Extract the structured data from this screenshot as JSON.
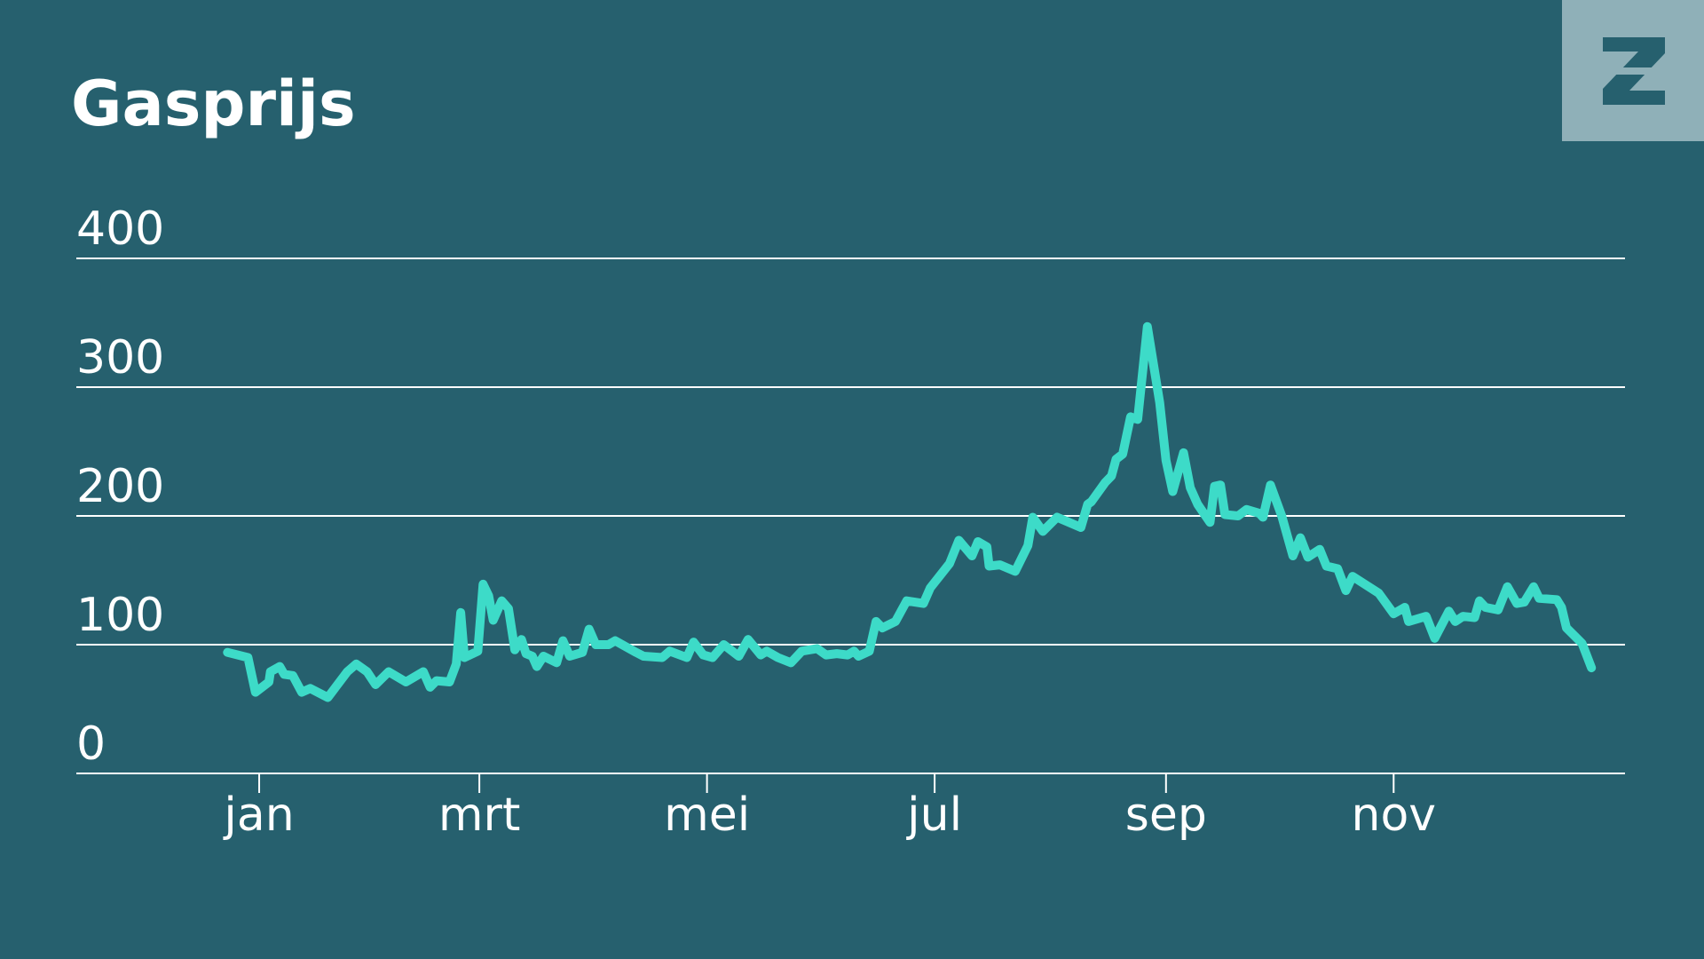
{
  "chart_data": {
    "type": "line",
    "title": "Gasprijs",
    "x": [
      -8.5,
      -3,
      -1,
      2.6,
      3,
      5.5,
      6.7,
      9,
      11.4,
      13.7,
      18.4,
      23.6,
      26,
      28.9,
      31.2,
      34.7,
      39.3,
      44,
      45.8,
      47.5,
      51,
      52.8,
      54,
      55,
      58.6,
      60,
      61.5,
      62.7,
      65,
      66.8,
      68.5,
      70.3,
      71.5,
      73.2,
      74.4,
      76.2,
      79.7,
      81.4,
      83.2,
      86.6,
      88.4,
      90.2,
      93.6,
      95.4,
      101,
      103,
      108,
      110,
      114.6,
      116.4,
      119,
      121.5,
      124.5,
      128.5,
      131,
      134.4,
      136,
      139,
      142.5,
      145.4,
      149.5,
      151.9,
      154.8,
      157.7,
      159.4,
      160.6,
      163.5,
      165.3,
      167,
      170.5,
      173.5,
      178,
      179.8,
      185,
      187.5,
      191,
      192.6,
      195,
      195.6,
      198.5,
      202.6,
      206,
      207.3,
      210,
      213.8,
      220.2,
      222,
      223,
      226.7,
      228.4,
      229.6,
      231.4,
      233.5,
      235.4,
      238,
      241.3,
      243,
      244.8,
      247.7,
      249.5,
      251.5,
      254.8,
      256,
      257.6,
      258.8,
      262.3,
      264.6,
      268,
      269,
      271,
      274,
      277,
      279,
      281,
      284.2,
      286,
      289,
      291.2,
      293,
      300,
      304,
      307,
      308,
      312.7,
      315,
      318.8,
      320.5,
      322.6,
      325.7,
      327,
      328.6,
      332,
      334.5,
      337,
      339,
      341.5,
      343,
      347.7,
      349,
      350.3,
      354.5,
      357
    ],
    "series": [
      {
        "name": "Gasprijs",
        "color": "#3ddbc8",
        "values": [
          94,
          90,
          63,
          71,
          79,
          83,
          77,
          76,
          63,
          66,
          59,
          79,
          85,
          79,
          69,
          79,
          71,
          79,
          67,
          72,
          71,
          85,
          125,
          90,
          95,
          147,
          138,
          119,
          134,
          128,
          96,
          104,
          93,
          91,
          83,
          91,
          86,
          103,
          91,
          94,
          112,
          100,
          100,
          103,
          94,
          91,
          90,
          95,
          90,
          102,
          92,
          90,
          100,
          91,
          104,
          92,
          95,
          90,
          86,
          95,
          97,
          92,
          93,
          92,
          95,
          91,
          95,
          118,
          113,
          118,
          134,
          132,
          144,
          163,
          181,
          169,
          180,
          176,
          161,
          162,
          157,
          177,
          199,
          188,
          199,
          191,
          209,
          211,
          226,
          231,
          244,
          248,
          277,
          275,
          347,
          288,
          243,
          219,
          249,
          222,
          209,
          195,
          223,
          224,
          201,
          200,
          205,
          202,
          199,
          224,
          200,
          169,
          183,
          168,
          174,
          161,
          159,
          142,
          153,
          140,
          124,
          129,
          118,
          122,
          105,
          126,
          118,
          122,
          121,
          134,
          129,
          127,
          145,
          132,
          133,
          145,
          136,
          135,
          129,
          113,
          101,
          82
        ]
      }
    ],
    "xlim": [
      -49,
      366
    ],
    "xticks": [
      {
        "value": 0,
        "label": "jan"
      },
      {
        "value": 59,
        "label": "mrt"
      },
      {
        "value": 120,
        "label": "mei"
      },
      {
        "value": 181,
        "label": "jul"
      },
      {
        "value": 243,
        "label": "sep"
      },
      {
        "value": 304,
        "label": "nov"
      }
    ],
    "ylim": [
      0,
      400
    ],
    "yticks": [
      0,
      100,
      200,
      300,
      400
    ],
    "grid": true
  }
}
